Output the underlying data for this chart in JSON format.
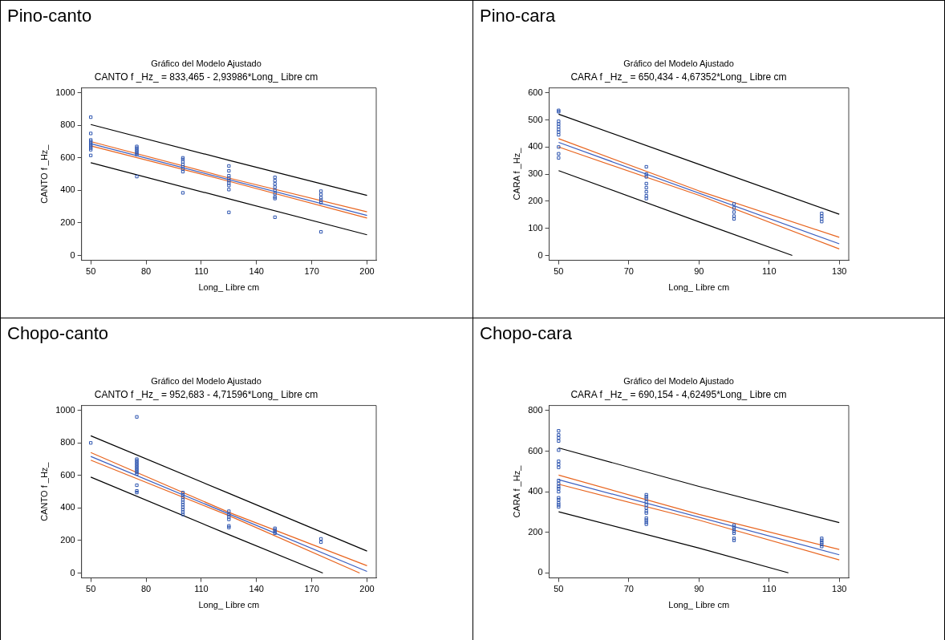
{
  "chart_data": [
    {
      "type": "scatter",
      "annotations": [
        "Pino-canto"
      ],
      "title": "Gráfico del Modelo Ajustado",
      "subtitle": "CANTO f _Hz_ = 833,465 - 2,93986*Long_ Libre cm",
      "xlabel": "Long_ Libre cm",
      "ylabel": "CANTO f _Hz_",
      "xlim": [
        45,
        205
      ],
      "xticks": [
        50,
        80,
        110,
        140,
        170,
        200
      ],
      "ylim": [
        -30,
        1030
      ],
      "yticks": [
        0,
        200,
        400,
        600,
        800,
        1000
      ],
      "grid": false,
      "series": [
        {
          "marker": "square",
          "color": "#2f56b0",
          "x": [
            50,
            50,
            50,
            50,
            50,
            50,
            50,
            50,
            50,
            50,
            75,
            75,
            75,
            75,
            75,
            75,
            75,
            100,
            100,
            100,
            100,
            100,
            100,
            100,
            100,
            125,
            125,
            125,
            125,
            125,
            125,
            125,
            125,
            125,
            150,
            150,
            150,
            150,
            150,
            150,
            150,
            150,
            150,
            175,
            175,
            175,
            175,
            175,
            175
          ],
          "values": [
            850,
            750,
            710,
            700,
            690,
            680,
            670,
            660,
            650,
            615,
            670,
            660,
            650,
            640,
            630,
            620,
            485,
            600,
            590,
            575,
            560,
            545,
            530,
            515,
            385,
            550,
            520,
            490,
            475,
            460,
            445,
            430,
            405,
            265,
            480,
            460,
            440,
            420,
            400,
            380,
            360,
            350,
            235,
            395,
            375,
            355,
            340,
            325,
            145
          ]
        },
        {
          "type": "line",
          "color": "#e8641e",
          "x": [
            50,
            125,
            200
          ],
          "values": [
            700,
            476,
            268
          ]
        },
        {
          "type": "line",
          "color": "#e8641e",
          "x": [
            50,
            125,
            200
          ],
          "values": [
            674,
            456,
            230
          ]
        },
        {
          "type": "line",
          "color": "#3b5fc0",
          "x": [
            50,
            200
          ],
          "values": [
            687,
            246
          ]
        },
        {
          "type": "line",
          "color": "#000000",
          "x": [
            50,
            125,
            200
          ],
          "values": [
            805,
            585,
            369
          ]
        },
        {
          "type": "line",
          "color": "#000000",
          "x": [
            50,
            125,
            200
          ],
          "values": [
            570,
            348,
            127
          ]
        }
      ]
    },
    {
      "type": "scatter",
      "annotations": [
        "Pino-cara"
      ],
      "title": "Gráfico del Modelo Ajustado",
      "subtitle": "CARA f _Hz_ = 650,434 - 4,67352*Long_ Libre cm",
      "xlabel": "Long_ Libre cm",
      "ylabel": "CARA f _Hz_",
      "xlim": [
        47.3,
        132.7
      ],
      "xticks": [
        50,
        70,
        90,
        110,
        130
      ],
      "ylim": [
        -18,
        618
      ],
      "yticks": [
        0,
        100,
        200,
        300,
        400,
        500,
        600
      ],
      "grid": false,
      "series": [
        {
          "marker": "square",
          "color": "#2f56b0",
          "x": [
            50,
            50,
            50,
            50,
            50,
            50,
            50,
            50,
            50,
            50,
            50,
            75,
            75,
            75,
            75,
            75,
            75,
            75,
            75,
            100,
            100,
            100,
            100,
            100,
            125,
            125,
            125,
            125
          ],
          "values": [
            535,
            530,
            495,
            485,
            475,
            465,
            455,
            445,
            400,
            375,
            360,
            327,
            300,
            290,
            265,
            250,
            235,
            220,
            210,
            190,
            175,
            160,
            145,
            135,
            155,
            145,
            135,
            125
          ]
        },
        {
          "type": "line",
          "color": "#e8641e",
          "x": [
            50,
            90,
            130
          ],
          "values": [
            431,
            238,
            67
          ]
        },
        {
          "type": "line",
          "color": "#e8641e",
          "x": [
            50,
            90,
            130
          ],
          "values": [
            400,
            222,
            24
          ]
        },
        {
          "type": "line",
          "color": "#3b5fc0",
          "x": [
            50,
            130
          ],
          "values": [
            417,
            43
          ]
        },
        {
          "type": "line",
          "color": "#000000",
          "x": [
            50,
            90,
            130
          ],
          "values": [
            521,
            336,
            152
          ]
        },
        {
          "type": "line",
          "color": "#000000",
          "x": [
            50,
            90,
            116.6
          ],
          "values": [
            313,
            124,
            0
          ]
        }
      ]
    },
    {
      "type": "scatter",
      "annotations": [
        "Chopo-canto"
      ],
      "title": "Gráfico del Modelo Ajustado",
      "subtitle": "CANTO f _Hz_ = 952,683 - 4,71596*Long_ Libre cm",
      "xlabel": "Long_ Libre cm",
      "ylabel": "CANTO f _Hz_",
      "xlim": [
        45,
        205
      ],
      "xticks": [
        50,
        80,
        110,
        140,
        170,
        200
      ],
      "ylim": [
        -30,
        1030
      ],
      "yticks": [
        0,
        200,
        400,
        600,
        800,
        1000
      ],
      "grid": false,
      "series": [
        {
          "marker": "square",
          "color": "#2f56b0",
          "x": [
            50,
            75,
            75,
            75,
            75,
            75,
            75,
            75,
            75,
            75,
            75,
            75,
            75,
            75,
            75,
            100,
            100,
            100,
            100,
            100,
            100,
            100,
            100,
            100,
            100,
            125,
            125,
            125,
            125,
            125,
            125,
            150,
            150,
            150,
            150,
            175,
            175
          ],
          "values": [
            800,
            960,
            700,
            690,
            680,
            670,
            660,
            650,
            640,
            630,
            620,
            610,
            540,
            505,
            495,
            495,
            480,
            465,
            450,
            435,
            420,
            405,
            390,
            375,
            360,
            380,
            360,
            345,
            330,
            290,
            280,
            275,
            265,
            255,
            245,
            210,
            190
          ]
        },
        {
          "type": "line",
          "color": "#e8641e",
          "x": [
            50,
            125,
            200
          ],
          "values": [
            741,
            373,
            45
          ]
        },
        {
          "type": "line",
          "color": "#e8641e",
          "x": [
            50,
            125,
            196
          ],
          "values": [
            694,
            353,
            0
          ]
        },
        {
          "type": "line",
          "color": "#3b5fc0",
          "x": [
            50,
            200
          ],
          "values": [
            717,
            10
          ]
        },
        {
          "type": "line",
          "color": "#000000",
          "x": [
            50,
            125,
            200
          ],
          "values": [
            844,
            490,
            135
          ]
        },
        {
          "type": "line",
          "color": "#000000",
          "x": [
            50,
            125,
            176
          ],
          "values": [
            590,
            236,
            0
          ]
        }
      ]
    },
    {
      "type": "scatter",
      "annotations": [
        "Chopo-cara"
      ],
      "title": "Gráfico del Modelo Ajustado",
      "subtitle": "CARA f _Hz_ = 690,154 - 4,62495*Long_ Libre cm",
      "xlabel": "Long_ Libre cm",
      "ylabel": "CARA f _Hz_",
      "xlim": [
        47.3,
        132.7
      ],
      "xticks": [
        50,
        70,
        90,
        110,
        130
      ],
      "ylim": [
        -25,
        825
      ],
      "yticks": [
        0,
        200,
        400,
        600,
        800
      ],
      "grid": false,
      "series": [
        {
          "marker": "square",
          "color": "#2f56b0",
          "x": [
            50,
            50,
            50,
            50,
            50,
            50,
            50,
            50,
            50,
            50,
            50,
            50,
            50,
            50,
            50,
            50,
            50,
            50,
            75,
            75,
            75,
            75,
            75,
            75,
            75,
            75,
            75,
            75,
            75,
            75,
            100,
            100,
            100,
            100,
            100,
            100,
            100,
            125,
            125,
            125,
            125,
            125
          ],
          "values": [
            700,
            680,
            665,
            650,
            605,
            550,
            535,
            520,
            455,
            440,
            425,
            415,
            400,
            370,
            360,
            345,
            335,
            325,
            385,
            375,
            365,
            350,
            335,
            320,
            305,
            295,
            270,
            260,
            250,
            240,
            235,
            225,
            215,
            205,
            195,
            170,
            160,
            170,
            160,
            150,
            140,
            130
          ]
        },
        {
          "type": "line",
          "color": "#e8641e",
          "x": [
            50,
            90,
            130
          ],
          "values": [
            482,
            288,
            115
          ]
        },
        {
          "type": "line",
          "color": "#e8641e",
          "x": [
            50,
            90,
            130
          ],
          "values": [
            437,
            260,
            64
          ]
        },
        {
          "type": "line",
          "color": "#3b5fc0",
          "x": [
            50,
            130
          ],
          "values": [
            459,
            89
          ]
        },
        {
          "type": "line",
          "color": "#000000",
          "x": [
            50,
            90,
            130
          ],
          "values": [
            616,
            426,
            248
          ]
        },
        {
          "type": "line",
          "color": "#000000",
          "x": [
            50,
            90,
            115.5
          ],
          "values": [
            301,
            122,
            0
          ]
        }
      ]
    }
  ]
}
